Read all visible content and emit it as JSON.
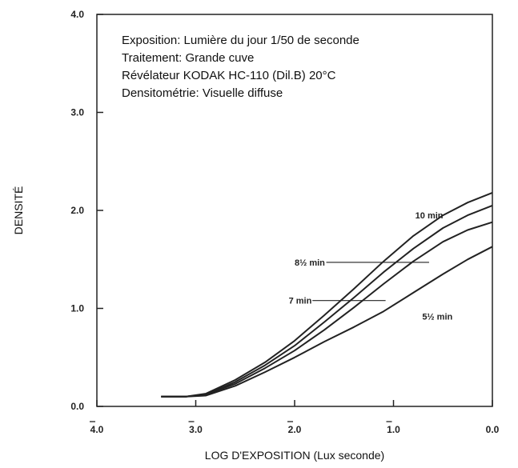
{
  "chart_data": {
    "type": "line",
    "xlabel": "LOG D'EXPOSITION (Lux seconde)",
    "ylabel": "DENSITÉ",
    "xlim": [
      -4.0,
      0.0
    ],
    "ylim": [
      0.0,
      4.0
    ],
    "x_ticks": [
      {
        "value": -4.0,
        "label": "4.0"
      },
      {
        "value": -3.0,
        "label": "3.0"
      },
      {
        "value": -2.0,
        "label": "2.0"
      },
      {
        "value": -1.0,
        "label": "1.0"
      },
      {
        "value": 0.0,
        "label": "0.0"
      }
    ],
    "y_ticks": [
      {
        "value": 0.0,
        "label": "0.0"
      },
      {
        "value": 1.0,
        "label": "1.0"
      },
      {
        "value": 2.0,
        "label": "2.0"
      },
      {
        "value": 3.0,
        "label": "3.0"
      },
      {
        "value": 4.0,
        "label": "4.0"
      }
    ],
    "grid": false,
    "notes": [
      "Exposition: Lumière du jour 1/50 de seconde",
      "Traitement: Grande cuve",
      "Révélateur KODAK HC-110 (Dil.B) 20°C",
      "Densitométrie: Visuelle diffuse"
    ],
    "series": [
      {
        "name": "10 min",
        "x": [
          -3.35,
          -3.1,
          -2.9,
          -2.6,
          -2.3,
          -2.0,
          -1.7,
          -1.4,
          -1.1,
          -0.8,
          -0.5,
          -0.25,
          0.0
        ],
        "y": [
          0.1,
          0.1,
          0.13,
          0.27,
          0.45,
          0.67,
          0.93,
          1.2,
          1.48,
          1.74,
          1.95,
          2.08,
          2.18
        ]
      },
      {
        "name": "8½ min",
        "x": [
          -3.35,
          -3.1,
          -2.9,
          -2.6,
          -2.3,
          -2.0,
          -1.7,
          -1.4,
          -1.1,
          -0.8,
          -0.5,
          -0.25,
          0.0
        ],
        "y": [
          0.1,
          0.1,
          0.12,
          0.25,
          0.42,
          0.62,
          0.86,
          1.11,
          1.37,
          1.61,
          1.82,
          1.95,
          2.05
        ]
      },
      {
        "name": "7 min",
        "x": [
          -3.35,
          -3.1,
          -2.9,
          -2.6,
          -2.3,
          -2.0,
          -1.7,
          -1.4,
          -1.1,
          -0.8,
          -0.5,
          -0.25,
          0.0
        ],
        "y": [
          0.1,
          0.1,
          0.12,
          0.23,
          0.39,
          0.57,
          0.78,
          1.01,
          1.25,
          1.48,
          1.68,
          1.8,
          1.88
        ]
      },
      {
        "name": "5½ min",
        "x": [
          -3.35,
          -3.1,
          -2.9,
          -2.6,
          -2.3,
          -2.0,
          -1.7,
          -1.4,
          -1.1,
          -0.8,
          -0.5,
          -0.25,
          0.0
        ],
        "y": [
          0.1,
          0.1,
          0.11,
          0.21,
          0.35,
          0.5,
          0.66,
          0.81,
          0.97,
          1.16,
          1.35,
          1.5,
          1.63
        ]
      }
    ],
    "series_labels": [
      {
        "series": "10 min",
        "label_x": -0.78,
        "label_y": 1.95,
        "leader": false
      },
      {
        "series": "8½ min",
        "label_x": -2.0,
        "label_y": 1.47,
        "leader": true,
        "leader_from_x": -1.68,
        "leader_to_x": -0.64,
        "leader_y": 1.47
      },
      {
        "series": "7 min",
        "label_x": -2.06,
        "label_y": 1.08,
        "leader": true,
        "leader_from_x": -1.82,
        "leader_to_x": -1.08,
        "leader_y": 1.08
      },
      {
        "series": "5½ min",
        "label_x": -0.71,
        "label_y": 0.92,
        "leader": false
      }
    ]
  }
}
